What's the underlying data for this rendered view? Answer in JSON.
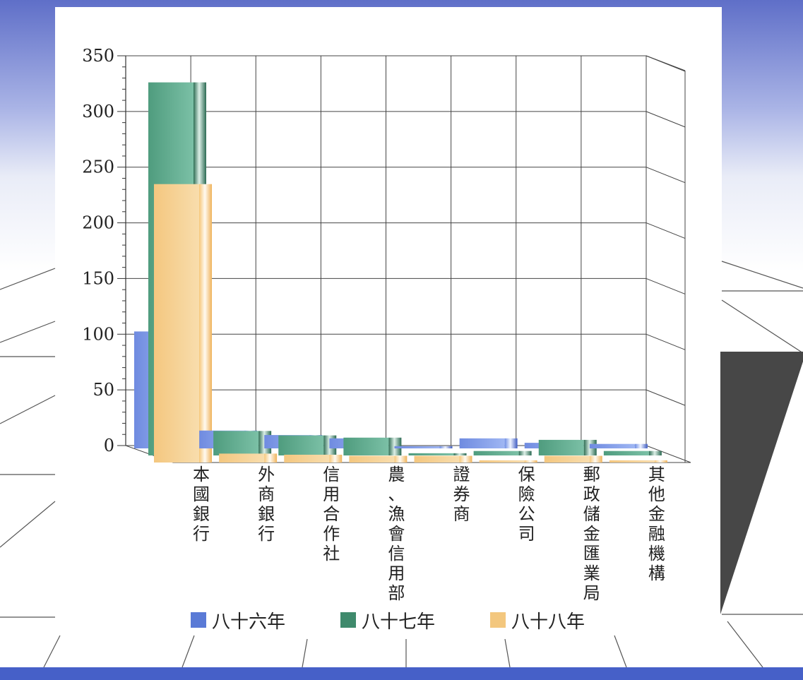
{
  "colors": {
    "s1": "#5a7ad6",
    "s2": "#3f8a6c",
    "s3": "#f3c77e",
    "bottom_bar": "#4660c8"
  },
  "chart_data": {
    "type": "bar",
    "title": "",
    "xlabel": "",
    "ylabel": "",
    "ylim": [
      0,
      350
    ],
    "yticks": [
      0,
      50,
      100,
      150,
      200,
      250,
      300,
      350
    ],
    "grid": true,
    "legend_position": "bottom",
    "categories": [
      "本國銀行",
      "外商銀行",
      "信用合作社",
      "農、漁會信用部",
      "證券商",
      "保險公司",
      "郵政儲金匯業局",
      "其他金融機構"
    ],
    "series": [
      {
        "name": "八十六年",
        "values": [
          105,
          16,
          12,
          9,
          2,
          9,
          5,
          4
        ]
      },
      {
        "name": "八十七年",
        "values": [
          335,
          22,
          18,
          16,
          2,
          4,
          14,
          4
        ]
      },
      {
        "name": "八十八年",
        "values": [
          250,
          8,
          7,
          6,
          6,
          2,
          6,
          2
        ]
      }
    ]
  }
}
